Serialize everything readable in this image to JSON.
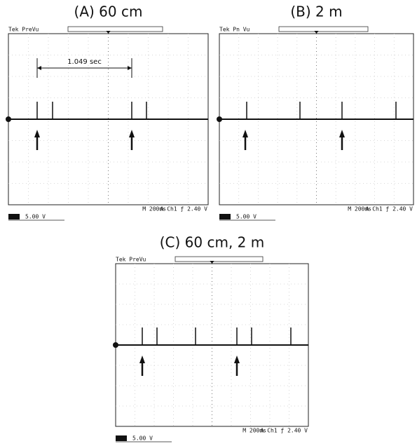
{
  "panels": [
    {
      "title": "(A) 60 cm",
      "header": "Tek PreVu",
      "scale": "5.00 V",
      "timebase": "M 200ms",
      "trigger": "A Ch1 ƒ 2.40 V",
      "annotation": "1.049 sec"
    },
    {
      "title": "(B) 2 m",
      "header": "Tek Pn Vu",
      "scale": "5.00 V",
      "timebase": "M 200ms",
      "trigger": "A Ch1 ƒ 2.40 V"
    },
    {
      "title": "(C) 60 cm, 2 m",
      "header": "Tek PreVu",
      "scale": "5.00 V",
      "timebase": "M 200ms",
      "trigger": "A Ch1 ƒ 2.40 V"
    }
  ]
}
